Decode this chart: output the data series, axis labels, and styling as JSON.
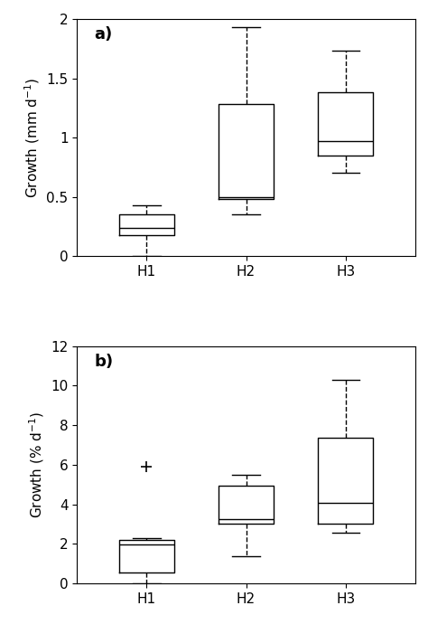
{
  "panel_a": {
    "title": "a)",
    "ylabel": "Growth (mm d$^{-1}$)",
    "ylim": [
      0,
      2
    ],
    "yticks": [
      0,
      0.5,
      1.0,
      1.5,
      2.0
    ],
    "yticklabels": [
      "0",
      "0.5",
      "1",
      "1.5",
      "2"
    ],
    "categories": [
      "H1",
      "H2",
      "H3"
    ],
    "boxes": [
      {
        "whislo": 0.0,
        "q1": 0.18,
        "med": 0.24,
        "q3": 0.35,
        "whishi": 0.43,
        "fliers": []
      },
      {
        "whislo": 0.35,
        "q1": 0.48,
        "med": 0.5,
        "q3": 1.28,
        "whishi": 1.93,
        "fliers": []
      },
      {
        "whislo": 0.7,
        "q1": 0.85,
        "med": 0.97,
        "q3": 1.38,
        "whishi": 1.73,
        "fliers": []
      }
    ]
  },
  "panel_b": {
    "title": "b)",
    "ylabel": "Growth (% d$^{-1}$)",
    "ylim": [
      0,
      12
    ],
    "yticks": [
      0,
      2,
      4,
      6,
      8,
      10,
      12
    ],
    "yticklabels": [
      "0",
      "2",
      "4",
      "6",
      "8",
      "10",
      "12"
    ],
    "categories": [
      "H1",
      "H2",
      "H3"
    ],
    "boxes": [
      {
        "whislo": 0.0,
        "q1": 0.55,
        "med": 1.95,
        "q3": 2.2,
        "whishi": 2.3,
        "fliers": [
          5.9
        ]
      },
      {
        "whislo": 1.35,
        "q1": 3.0,
        "med": 3.25,
        "q3": 4.95,
        "whishi": 5.5,
        "fliers": []
      },
      {
        "whislo": 2.55,
        "q1": 3.0,
        "med": 4.05,
        "q3": 7.35,
        "whishi": 10.3,
        "fliers": []
      }
    ]
  },
  "box_color": "#000000",
  "linewidth": 1.0,
  "whisker_linestyle": "--",
  "cap_linewidth": 1.0,
  "figsize": [
    4.74,
    7.01
  ],
  "dpi": 100,
  "background_color": "#ffffff",
  "label_fontsize": 11,
  "tick_fontsize": 11,
  "panel_label_fontsize": 13,
  "box_width": 0.55,
  "xlim": [
    0.3,
    3.7
  ]
}
